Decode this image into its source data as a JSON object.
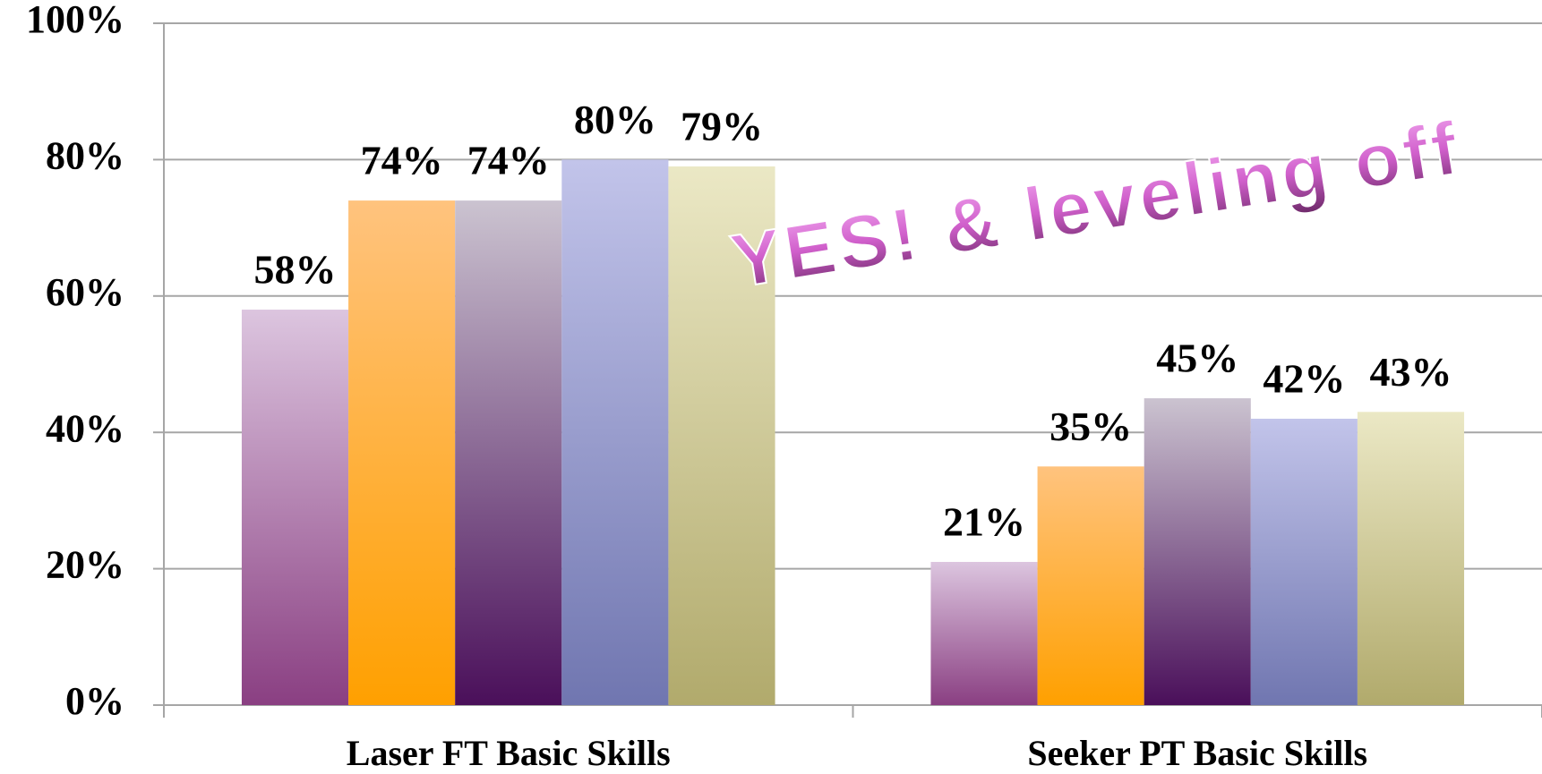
{
  "chart_data": {
    "type": "bar",
    "categories": [
      "Laser FT Basic Skills",
      "Seeker PT Basic Skills"
    ],
    "series": [
      {
        "colors": [
          "#dcc5df",
          "#8a3f82"
        ],
        "values": [
          58,
          21
        ],
        "value_labels": [
          "58%",
          "21%"
        ]
      },
      {
        "colors": [
          "#ffc37e",
          "#ffa000"
        ],
        "values": [
          74,
          35
        ],
        "value_labels": [
          "74%",
          "35%"
        ]
      },
      {
        "colors": [
          "#cbc3d0",
          "#4a0f5a"
        ],
        "values": [
          74,
          45
        ],
        "value_labels": [
          "74%",
          "45%"
        ]
      },
      {
        "colors": [
          "#c2c4ea",
          "#7076b0"
        ],
        "values": [
          80,
          42
        ],
        "value_labels": [
          "80%",
          "42%"
        ]
      },
      {
        "colors": [
          "#ebe8c5",
          "#b1aa6c"
        ],
        "values": [
          79,
          43
        ],
        "value_labels": [
          "79%",
          "43%"
        ]
      }
    ],
    "ylim": [
      0,
      100
    ],
    "yticks": [
      {
        "value": 0,
        "label": "0%"
      },
      {
        "value": 20,
        "label": "20%"
      },
      {
        "value": 40,
        "label": "40%"
      },
      {
        "value": 60,
        "label": "60%"
      },
      {
        "value": 80,
        "label": "80%"
      },
      {
        "value": 100,
        "label": "100%"
      }
    ],
    "grid": true,
    "annotation": "YES! & leveling off"
  }
}
